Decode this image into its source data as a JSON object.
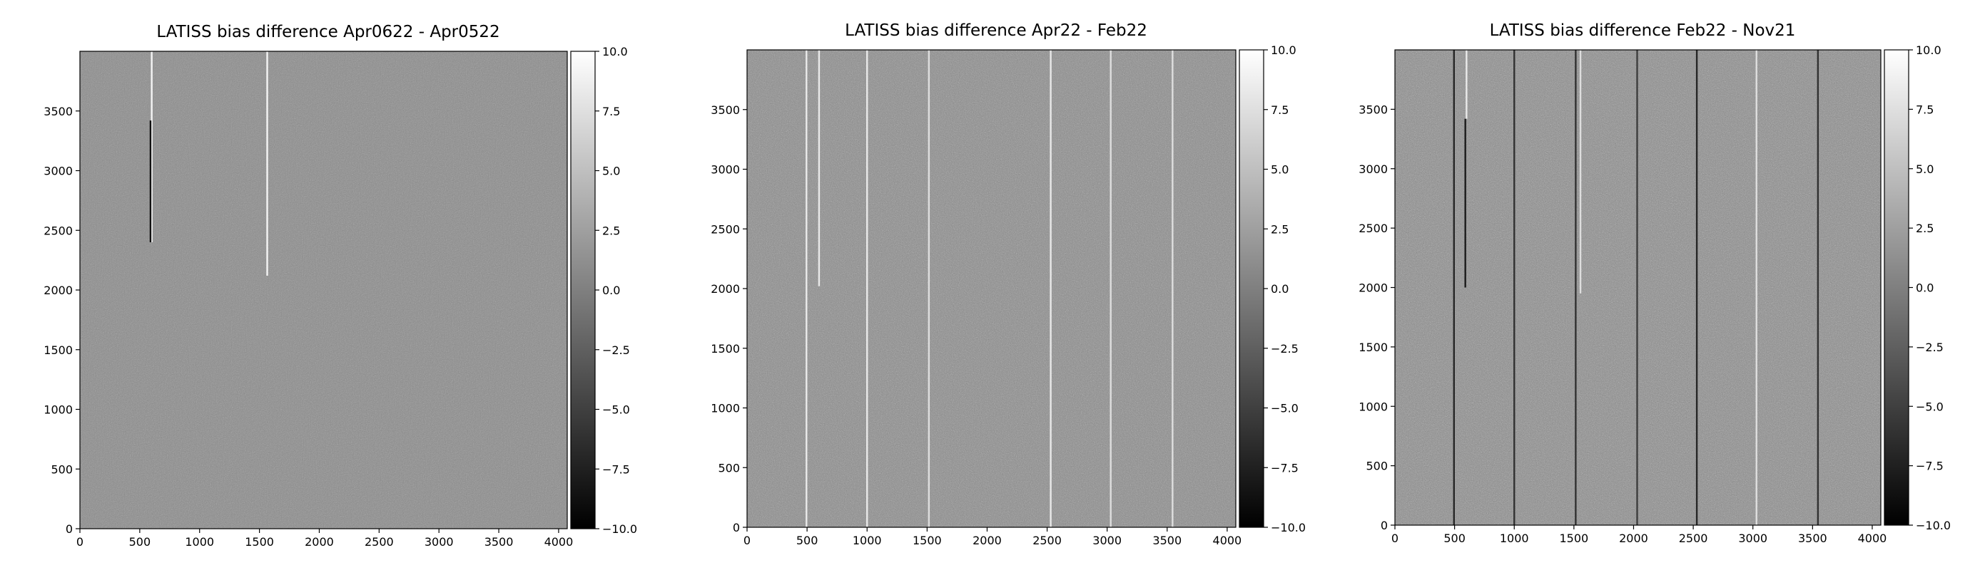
{
  "figure": {
    "title": ""
  },
  "chart_data": [
    {
      "type": "heatmap",
      "title": "LATISS bias difference Apr0622 - Apr0522",
      "xlabel": "",
      "ylabel": "",
      "xlim": [
        0,
        4072
      ],
      "ylim": [
        0,
        4000
      ],
      "x_ticks": [
        0,
        500,
        1000,
        1500,
        2000,
        2500,
        3000,
        3500,
        4000
      ],
      "y_ticks": [
        0,
        500,
        1000,
        1500,
        2000,
        2500,
        3000,
        3500
      ],
      "colorbar": {
        "range": [
          -10.0,
          10.0
        ],
        "colormap": "gray",
        "ticks": [
          "10.0",
          "7.5",
          "5.0",
          "2.5",
          "0.0",
          "−2.5",
          "−5.0",
          "−7.5",
          "−10.0"
        ]
      },
      "noise_level": 0.5,
      "features": [
        {
          "kind": "column",
          "x": 600,
          "y0": 2400,
          "y1": 4000,
          "value": 1.0
        },
        {
          "kind": "column",
          "x": 590,
          "y0": 2400,
          "y1": 3420,
          "value": 0.0
        },
        {
          "kind": "column",
          "x": 1565,
          "y0": 2120,
          "y1": 4000,
          "value": 1.0
        }
      ]
    },
    {
      "type": "heatmap",
      "title": "LATISS bias difference Apr22 - Feb22",
      "xlabel": "",
      "ylabel": "",
      "xlim": [
        0,
        4072
      ],
      "ylim": [
        0,
        4000
      ],
      "x_ticks": [
        0,
        500,
        1000,
        1500,
        2000,
        2500,
        3000,
        3500,
        4000
      ],
      "y_ticks": [
        0,
        500,
        1000,
        1500,
        2000,
        2500,
        3000,
        3500
      ],
      "colorbar": {
        "range": [
          -10.0,
          10.0
        ],
        "colormap": "gray",
        "ticks": [
          "10.0",
          "7.5",
          "5.0",
          "2.5",
          "0.0",
          "−2.5",
          "−5.0",
          "−7.5",
          "−10.0"
        ]
      },
      "noise_level": 0.62,
      "features": [
        {
          "kind": "column",
          "x": 495,
          "y0": 0,
          "y1": 4000,
          "value": 0.95
        },
        {
          "kind": "column",
          "x": 600,
          "y0": 2020,
          "y1": 4000,
          "value": 0.95
        },
        {
          "kind": "column",
          "x": 1000,
          "y0": 0,
          "y1": 4000,
          "value": 0.95
        },
        {
          "kind": "column",
          "x": 1515,
          "y0": 0,
          "y1": 4000,
          "value": 0.9
        },
        {
          "kind": "column",
          "x": 2530,
          "y0": 0,
          "y1": 4000,
          "value": 0.95
        },
        {
          "kind": "column",
          "x": 3030,
          "y0": 0,
          "y1": 4000,
          "value": 0.9
        },
        {
          "kind": "column",
          "x": 3545,
          "y0": 0,
          "y1": 4000,
          "value": 0.9
        }
      ]
    },
    {
      "type": "heatmap",
      "title": "LATISS bias difference Feb22 - Nov21",
      "xlabel": "",
      "ylabel": "",
      "xlim": [
        0,
        4072
      ],
      "ylim": [
        0,
        4000
      ],
      "x_ticks": [
        0,
        500,
        1000,
        1500,
        2000,
        2500,
        3000,
        3500,
        4000
      ],
      "y_ticks": [
        0,
        500,
        1000,
        1500,
        2000,
        2500,
        3000,
        3500
      ],
      "colorbar": {
        "range": [
          -10.0,
          10.0
        ],
        "colormap": "gray",
        "ticks": [
          "10.0",
          "7.5",
          "5.0",
          "2.5",
          "0.0",
          "−2.5",
          "−5.0",
          "−7.5",
          "−10.0"
        ]
      },
      "noise_level": 0.68,
      "features": [
        {
          "kind": "column",
          "x": 495,
          "y0": 0,
          "y1": 4000,
          "value": 0.1
        },
        {
          "kind": "column",
          "x": 600,
          "y0": 3420,
          "y1": 4000,
          "value": 0.95
        },
        {
          "kind": "column",
          "x": 590,
          "y0": 2000,
          "y1": 3420,
          "value": 0.05
        },
        {
          "kind": "column",
          "x": 1000,
          "y0": 0,
          "y1": 4000,
          "value": 0.15
        },
        {
          "kind": "column",
          "x": 1555,
          "y0": 1950,
          "y1": 4000,
          "value": 0.9
        },
        {
          "kind": "column",
          "x": 1515,
          "y0": 0,
          "y1": 4000,
          "value": 0.15
        },
        {
          "kind": "column",
          "x": 2030,
          "y0": 0,
          "y1": 4000,
          "value": 0.2
        },
        {
          "kind": "column",
          "x": 2530,
          "y0": 0,
          "y1": 4000,
          "value": 0.1
        },
        {
          "kind": "column",
          "x": 3030,
          "y0": 0,
          "y1": 4000,
          "value": 0.9
        },
        {
          "kind": "column",
          "x": 3545,
          "y0": 0,
          "y1": 4000,
          "value": 0.15
        }
      ]
    }
  ]
}
